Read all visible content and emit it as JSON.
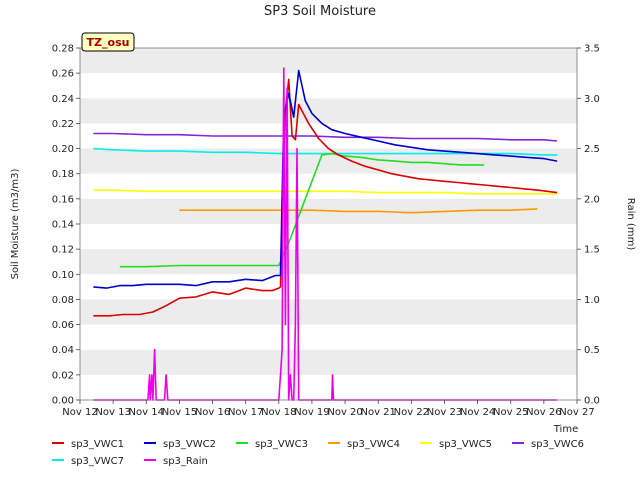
{
  "chart_data": {
    "type": "line",
    "title": "SP3 Soil Moisture",
    "badge": "TZ_osu",
    "xlabel": "Time",
    "ylabel": "Soil Moisture (m3/m3)",
    "y2label": "Rain (mm)",
    "xlim": [
      12,
      27
    ],
    "ylim": [
      0.0,
      0.28
    ],
    "y2lim": [
      0.0,
      3.5
    ],
    "x_ticks": [
      {
        "x": 12,
        "label": "Nov 12"
      },
      {
        "x": 13,
        "label": "Nov 13"
      },
      {
        "x": 14,
        "label": "Nov 14"
      },
      {
        "x": 15,
        "label": "Nov 15"
      },
      {
        "x": 16,
        "label": "Nov 16"
      },
      {
        "x": 17,
        "label": "Nov 17"
      },
      {
        "x": 18,
        "label": "Nov 18"
      },
      {
        "x": 19,
        "label": "Nov 19"
      },
      {
        "x": 20,
        "label": "Nov 20"
      },
      {
        "x": 21,
        "label": "Nov 21"
      },
      {
        "x": 22,
        "label": "Nov 22"
      },
      {
        "x": 23,
        "label": "Nov 23"
      },
      {
        "x": 24,
        "label": "Nov 24"
      },
      {
        "x": 25,
        "label": "Nov 25"
      },
      {
        "x": 26,
        "label": "Nov 26"
      },
      {
        "x": 27,
        "label": "Nov 27"
      }
    ],
    "y_ticks": [
      "0.00",
      "0.02",
      "0.04",
      "0.06",
      "0.08",
      "0.10",
      "0.12",
      "0.14",
      "0.16",
      "0.18",
      "0.20",
      "0.22",
      "0.24",
      "0.26",
      "0.28"
    ],
    "y2_ticks": [
      "0.0",
      "0.5",
      "1.0",
      "1.5",
      "2.0",
      "2.5",
      "3.0",
      "3.5"
    ],
    "grid": "horizontal bands",
    "legend_position": "bottom",
    "series": [
      {
        "name": "sp3_VWC1",
        "color": "#dd0000",
        "axis": "left",
        "x": [
          12.4,
          12.9,
          13.3,
          13.8,
          14.2,
          14.6,
          15.0,
          15.5,
          16.0,
          16.5,
          17.0,
          17.5,
          17.8,
          18.0,
          18.05,
          18.2,
          18.3,
          18.4,
          18.5,
          18.6,
          18.9,
          19.2,
          19.5,
          19.8,
          20.2,
          20.6,
          21.0,
          21.4,
          21.8,
          22.2,
          22.6,
          23.0,
          23.4,
          23.8,
          24.2,
          24.6,
          25.0,
          25.4,
          25.8,
          26.4
        ],
        "y": [
          0.067,
          0.067,
          0.068,
          0.068,
          0.07,
          0.075,
          0.081,
          0.082,
          0.086,
          0.084,
          0.089,
          0.087,
          0.087,
          0.089,
          0.09,
          0.23,
          0.255,
          0.21,
          0.207,
          0.235,
          0.22,
          0.208,
          0.2,
          0.195,
          0.19,
          0.186,
          0.183,
          0.18,
          0.178,
          0.176,
          0.175,
          0.174,
          0.173,
          0.172,
          0.171,
          0.17,
          0.169,
          0.168,
          0.167,
          0.165
        ]
      },
      {
        "name": "sp3_VWC2",
        "color": "#0000cc",
        "axis": "left",
        "x": [
          12.4,
          12.8,
          13.2,
          13.6,
          14.0,
          14.5,
          15.0,
          15.5,
          16.0,
          16.5,
          17.0,
          17.5,
          17.9,
          18.05,
          18.15,
          18.3,
          18.45,
          18.6,
          18.8,
          19.0,
          19.3,
          19.6,
          20.0,
          20.5,
          21.0,
          21.5,
          22.0,
          22.5,
          23.0,
          23.5,
          24.0,
          24.5,
          25.0,
          25.5,
          26.0,
          26.4
        ],
        "y": [
          0.09,
          0.089,
          0.091,
          0.091,
          0.092,
          0.092,
          0.092,
          0.091,
          0.094,
          0.094,
          0.096,
          0.095,
          0.099,
          0.099,
          0.225,
          0.244,
          0.225,
          0.262,
          0.238,
          0.228,
          0.22,
          0.215,
          0.212,
          0.209,
          0.206,
          0.203,
          0.201,
          0.199,
          0.198,
          0.197,
          0.196,
          0.195,
          0.194,
          0.193,
          0.192,
          0.19
        ]
      },
      {
        "name": "sp3_VWC3",
        "color": "#22dd22",
        "axis": "left",
        "x": [
          13.2,
          14.0,
          15.0,
          16.0,
          17.0,
          18.0,
          18.3,
          18.8,
          19.3,
          19.6,
          20.0,
          20.5,
          21.0,
          21.5,
          22.0,
          22.5,
          23.0,
          23.5,
          24.2
        ],
        "y": [
          0.106,
          0.106,
          0.107,
          0.107,
          0.107,
          0.107,
          0.125,
          0.16,
          0.195,
          0.196,
          0.194,
          0.193,
          0.191,
          0.19,
          0.189,
          0.189,
          0.188,
          0.187,
          0.187
        ]
      },
      {
        "name": "sp3_VWC4",
        "color": "#ff9900",
        "axis": "left",
        "x": [
          15.0,
          16.0,
          17.0,
          18.0,
          19.0,
          20.0,
          21.0,
          22.0,
          23.0,
          24.0,
          25.0,
          25.8
        ],
        "y": [
          0.151,
          0.151,
          0.151,
          0.151,
          0.151,
          0.15,
          0.15,
          0.149,
          0.15,
          0.151,
          0.151,
          0.152
        ]
      },
      {
        "name": "sp3_VWC5",
        "color": "#ffff00",
        "axis": "left",
        "x": [
          12.4,
          13.0,
          14.0,
          15.0,
          16.0,
          17.0,
          18.0,
          19.0,
          20.0,
          21.0,
          22.0,
          23.0,
          24.0,
          25.0,
          26.0,
          26.4
        ],
        "y": [
          0.167,
          0.167,
          0.166,
          0.166,
          0.166,
          0.166,
          0.166,
          0.166,
          0.166,
          0.165,
          0.165,
          0.165,
          0.164,
          0.164,
          0.164,
          0.164
        ]
      },
      {
        "name": "sp3_VWC6",
        "color": "#8822dd",
        "axis": "left",
        "x": [
          12.4,
          13.0,
          14.0,
          15.0,
          16.0,
          17.0,
          18.0,
          19.0,
          20.0,
          21.0,
          22.0,
          23.0,
          24.0,
          25.0,
          26.0,
          26.4
        ],
        "y": [
          0.212,
          0.212,
          0.211,
          0.211,
          0.21,
          0.21,
          0.21,
          0.21,
          0.209,
          0.209,
          0.208,
          0.208,
          0.208,
          0.207,
          0.207,
          0.206
        ]
      },
      {
        "name": "sp3_VWC7",
        "color": "#00eeee",
        "axis": "left",
        "x": [
          12.4,
          13.0,
          14.0,
          15.0,
          16.0,
          17.0,
          18.0,
          19.0,
          20.0,
          21.0,
          22.0,
          23.0,
          24.0,
          25.0,
          26.0,
          26.4
        ],
        "y": [
          0.2,
          0.199,
          0.198,
          0.198,
          0.197,
          0.197,
          0.196,
          0.196,
          0.196,
          0.196,
          0.196,
          0.196,
          0.196,
          0.196,
          0.195,
          0.195
        ]
      },
      {
        "name": "sp3_Rain",
        "color": "#ee00ee",
        "axis": "right",
        "x": [
          12.4,
          14.05,
          14.1,
          14.12,
          14.17,
          14.2,
          14.25,
          14.3,
          14.35,
          14.4,
          14.45,
          14.55,
          14.6,
          14.65,
          18.0,
          18.05,
          18.1,
          18.15,
          18.2,
          18.25,
          18.3,
          18.35,
          18.4,
          18.45,
          18.5,
          18.55,
          18.6,
          18.65,
          18.7,
          18.75,
          18.8,
          18.85,
          18.9,
          18.95,
          19.0,
          19.05,
          19.1,
          19.15,
          19.2,
          19.25,
          19.3,
          19.35,
          19.4,
          19.45,
          19.5,
          19.55,
          19.6,
          19.62,
          19.65,
          19.68,
          19.7,
          26.4
        ],
        "y": [
          0.0,
          0.0,
          0.25,
          0.0,
          0.25,
          0.0,
          0.5,
          0.0,
          0.0,
          0.0,
          0.0,
          0.0,
          0.25,
          0.0,
          0.0,
          0.25,
          0.5,
          3.3,
          0.75,
          3.1,
          0.0,
          0.25,
          0.0,
          0.0,
          0.75,
          2.5,
          0.0,
          0.0,
          0.0,
          0.0,
          0.0,
          0.0,
          0.0,
          0.0,
          0.0,
          0.0,
          0.0,
          0.0,
          0.0,
          0.0,
          0.0,
          0.0,
          0.0,
          0.0,
          0.0,
          0.0,
          0.0,
          0.25,
          0.0,
          0.0,
          0.0,
          0.0
        ]
      }
    ]
  }
}
